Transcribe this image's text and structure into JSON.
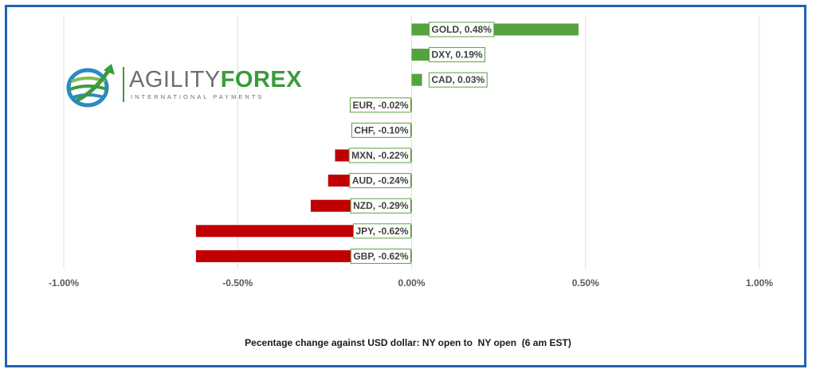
{
  "logo": {
    "word_regular": "AGILITY",
    "word_strong": "FOREX",
    "tagline": "INTERNATIONAL PAYMENTS"
  },
  "caption": "Pecentage change against USD dollar: NY open to  NY open  (6 am EST)",
  "colors": {
    "positive": "#55a33f",
    "negative": "#c00000",
    "frame": "#1f63b3",
    "label_border": "#5c9f43"
  },
  "chart_data": {
    "type": "bar",
    "orientation": "horizontal",
    "categories": [
      "GOLD",
      "DXY",
      "CAD",
      "EUR",
      "CHF",
      "MXN",
      "AUD",
      "NZD",
      "JPY",
      "GBP"
    ],
    "values": [
      0.48,
      0.19,
      0.03,
      -0.02,
      -0.1,
      -0.22,
      -0.24,
      -0.29,
      -0.62,
      -0.62
    ],
    "data_labels": [
      "GOLD, 0.48%",
      "DXY, 0.19%",
      "CAD, 0.03%",
      "EUR, -0.02%",
      "CHF, -0.10%",
      "MXN, -0.22%",
      "AUD, -0.24%",
      "NZD, -0.29%",
      "JPY, -0.62%",
      "GBP, -0.62%"
    ],
    "xlim": [
      -1.0,
      1.0
    ],
    "ticks": [
      -1.0,
      -0.5,
      0.0,
      0.5,
      1.0
    ],
    "tick_labels": [
      "-1.00%",
      "-0.50%",
      "0.00%",
      "0.50%",
      "1.00%"
    ],
    "grid": true
  }
}
